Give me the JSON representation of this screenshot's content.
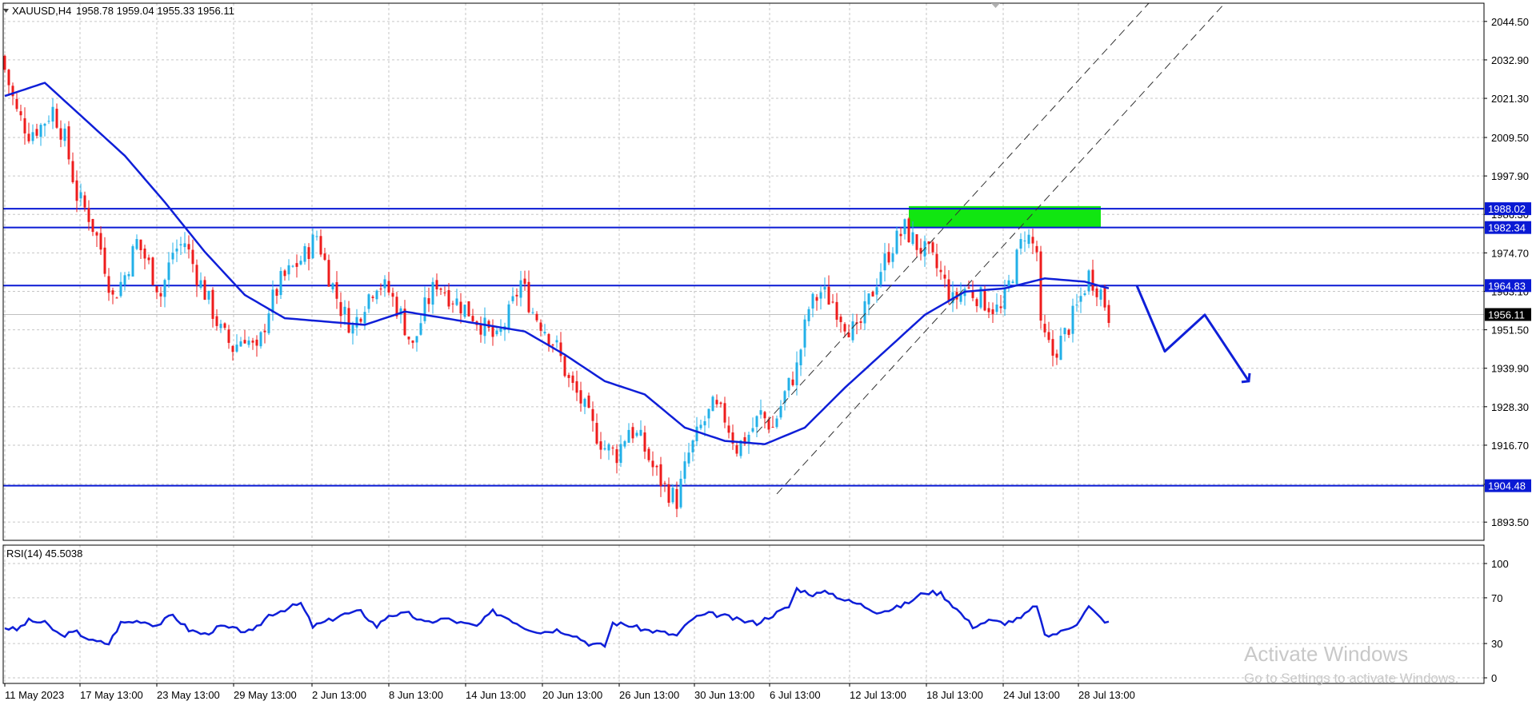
{
  "header": {
    "symbol_label": "XAUUSD,H4",
    "ohlc": "1958.78 1959.04 1955.33 1956.11",
    "menu_icon": "triangle-down-icon"
  },
  "watermark": {
    "line1": "Activate Windows",
    "line2": "Go to Settings to activate Windows."
  },
  "colors": {
    "bull": "#22b0e8",
    "bear": "#ee1c1c",
    "ma": "#0f1fd8",
    "level": "#0a1ad4",
    "zone": "#11e611",
    "grid": "#c6c6c6"
  },
  "chart_data": [
    {
      "type": "candlestick",
      "symbol": "XAUUSD",
      "timeframe": "H4",
      "ylim": [
        1888.0,
        2050.0
      ],
      "y_ticks": [
        "2044.50",
        "2032.90",
        "2021.30",
        "2009.50",
        "1997.90",
        "1986.30",
        "1974.70",
        "1963.10",
        "1951.50",
        "1939.90",
        "1928.30",
        "1916.70",
        "1904.90",
        "1893.50"
      ],
      "x_ticks": [
        "11 May 2023",
        "17 May 13:00",
        "23 May 13:00",
        "29 May 13:00",
        "2 Jun 13:00",
        "8 Jun 13:00",
        "14 Jun 13:00",
        "20 Jun 13:00",
        "26 Jun 13:00",
        "30 Jun 13:00",
        "6 Jul 13:00",
        "12 Jul 13:00",
        "18 Jul 13:00",
        "24 Jul 13:00",
        "28 Jul 13:00"
      ],
      "price_anchors": [
        [
          0,
          2030
        ],
        [
          3,
          2017
        ],
        [
          6,
          2011
        ],
        [
          9,
          2013
        ],
        [
          12,
          2018
        ],
        [
          15,
          2009
        ],
        [
          18,
          1992
        ],
        [
          21,
          1986
        ],
        [
          24,
          1976
        ],
        [
          27,
          1961
        ],
        [
          30,
          1968
        ],
        [
          33,
          1978
        ],
        [
          36,
          1971
        ],
        [
          39,
          1962
        ],
        [
          42,
          1975
        ],
        [
          45,
          1978
        ],
        [
          48,
          1968
        ],
        [
          51,
          1960
        ],
        [
          54,
          1951
        ],
        [
          57,
          1946
        ],
        [
          60,
          1950
        ],
        [
          63,
          1944
        ],
        [
          66,
          1958
        ],
        [
          69,
          1966
        ],
        [
          72,
          1970
        ],
        [
          75,
          1974
        ],
        [
          78,
          1980
        ],
        [
          81,
          1968
        ],
        [
          84,
          1958
        ],
        [
          87,
          1952
        ],
        [
          90,
          1960
        ],
        [
          93,
          1966
        ],
        [
          96,
          1963
        ],
        [
          99,
          1956
        ],
        [
          102,
          1946
        ],
        [
          105,
          1958
        ],
        [
          108,
          1966
        ],
        [
          111,
          1962
        ],
        [
          114,
          1959
        ],
        [
          117,
          1956
        ],
        [
          120,
          1952
        ],
        [
          123,
          1948
        ],
        [
          126,
          1956
        ],
        [
          129,
          1966
        ],
        [
          132,
          1957
        ],
        [
          135,
          1952
        ],
        [
          138,
          1946
        ],
        [
          141,
          1936
        ],
        [
          144,
          1930
        ],
        [
          147,
          1922
        ],
        [
          150,
          1916
        ],
        [
          153,
          1914
        ],
        [
          156,
          1922
        ],
        [
          159,
          1918
        ],
        [
          162,
          1910
        ],
        [
          165,
          1904
        ],
        [
          168,
          1900
        ],
        [
          171,
          1914
        ],
        [
          174,
          1922
        ],
        [
          177,
          1928
        ],
        [
          180,
          1925
        ],
        [
          183,
          1916
        ],
        [
          186,
          1920
        ],
        [
          189,
          1926
        ],
        [
          192,
          1922
        ],
        [
          195,
          1932
        ],
        [
          198,
          1940
        ],
        [
          201,
          1958
        ],
        [
          204,
          1963
        ],
        [
          207,
          1960
        ],
        [
          210,
          1954
        ],
        [
          213,
          1950
        ],
        [
          216,
          1960
        ],
        [
          219,
          1970
        ],
        [
          222,
          1977
        ],
        [
          225,
          1982
        ],
        [
          228,
          1977
        ],
        [
          231,
          1974
        ],
        [
          234,
          1968
        ],
        [
          237,
          1960
        ],
        [
          240,
          1964
        ],
        [
          243,
          1962
        ],
        [
          246,
          1959
        ],
        [
          249,
          1957
        ],
        [
          252,
          1969
        ],
        [
          255,
          1981
        ],
        [
          258,
          1975
        ],
        [
          259,
          1951
        ],
        [
          262,
          1944
        ],
        [
          265,
          1950
        ],
        [
          268,
          1958
        ],
        [
          271,
          1968
        ],
        [
          274,
          1963
        ],
        [
          276,
          1956
        ]
      ],
      "series": [
        {
          "name": "",
          "kind": "moving-average",
          "anchors": [
            [
              0,
              2022
            ],
            [
              10,
              2026
            ],
            [
              20,
              2015
            ],
            [
              30,
              2004
            ],
            [
              40,
              1990
            ],
            [
              50,
              1975
            ],
            [
              60,
              1962
            ],
            [
              70,
              1955
            ],
            [
              80,
              1954
            ],
            [
              90,
              1953
            ],
            [
              100,
              1957
            ],
            [
              110,
              1955
            ],
            [
              120,
              1953
            ],
            [
              130,
              1951
            ],
            [
              140,
              1944
            ],
            [
              150,
              1936
            ],
            [
              160,
              1932
            ],
            [
              170,
              1922
            ],
            [
              180,
              1918
            ],
            [
              190,
              1917
            ],
            [
              200,
              1922
            ],
            [
              210,
              1934
            ],
            [
              220,
              1945
            ],
            [
              230,
              1956
            ],
            [
              240,
              1963
            ],
            [
              250,
              1964
            ],
            [
              260,
              1967
            ],
            [
              270,
              1966
            ],
            [
              276,
              1964
            ]
          ]
        }
      ],
      "levels": [
        {
          "label": "1988.02",
          "value": 1988.02
        },
        {
          "label": "1982.34",
          "value": 1982.34
        },
        {
          "label": "1964.83",
          "value": 1964.83
        },
        {
          "label": "1904.48",
          "value": 1904.48
        }
      ],
      "current_price_label": "1956.11",
      "current_price": 1956.11,
      "zone": {
        "from_bar": 226,
        "to_bar": 274,
        "low": 1982.34,
        "high": 1988.8
      },
      "channel_lines": [
        {
          "from": [
            188,
            1920.5
          ],
          "to": [
            286,
            2050
          ]
        },
        {
          "from": [
            193,
            1902
          ],
          "to": [
            305,
            2050
          ]
        }
      ],
      "projection": [
        [
          283,
          1964.83
        ],
        [
          290,
          1945
        ],
        [
          300,
          1956
        ],
        [
          311,
          1936
        ]
      ]
    },
    {
      "type": "line",
      "label": "RSI(14) 45.5038",
      "ylim": [
        0,
        100
      ],
      "y_ticks": [
        "100",
        "70",
        "30",
        "0"
      ],
      "anchors": [
        [
          0,
          44
        ],
        [
          3,
          42
        ],
        [
          6,
          50
        ],
        [
          10,
          48
        ],
        [
          14,
          37
        ],
        [
          18,
          40
        ],
        [
          22,
          32
        ],
        [
          26,
          30
        ],
        [
          29,
          48
        ],
        [
          34,
          50
        ],
        [
          38,
          46
        ],
        [
          42,
          55
        ],
        [
          46,
          42
        ],
        [
          50,
          38
        ],
        [
          54,
          45
        ],
        [
          58,
          42
        ],
        [
          62,
          40
        ],
        [
          66,
          55
        ],
        [
          70,
          60
        ],
        [
          74,
          65
        ],
        [
          77,
          45
        ],
        [
          81,
          50
        ],
        [
          84,
          55
        ],
        [
          89,
          58
        ],
        [
          93,
          45
        ],
        [
          96,
          55
        ],
        [
          101,
          56
        ],
        [
          105,
          48
        ],
        [
          110,
          52
        ],
        [
          114,
          48
        ],
        [
          118,
          45
        ],
        [
          122,
          58
        ],
        [
          126,
          52
        ],
        [
          130,
          44
        ],
        [
          134,
          40
        ],
        [
          138,
          42
        ],
        [
          142,
          38
        ],
        [
          146,
          30
        ],
        [
          150,
          28
        ],
        [
          152,
          48
        ],
        [
          156,
          46
        ],
        [
          160,
          42
        ],
        [
          164,
          40
        ],
        [
          168,
          37
        ],
        [
          172,
          52
        ],
        [
          176,
          56
        ],
        [
          180,
          54
        ],
        [
          184,
          50
        ],
        [
          188,
          48
        ],
        [
          192,
          55
        ],
        [
          196,
          62
        ],
        [
          198,
          78
        ],
        [
          202,
          73
        ],
        [
          206,
          75
        ],
        [
          210,
          68
        ],
        [
          214,
          64
        ],
        [
          218,
          58
        ],
        [
          222,
          60
        ],
        [
          226,
          66
        ],
        [
          230,
          75
        ],
        [
          234,
          74
        ],
        [
          238,
          60
        ],
        [
          242,
          45
        ],
        [
          246,
          50
        ],
        [
          250,
          48
        ],
        [
          254,
          52
        ],
        [
          258,
          64
        ],
        [
          260,
          36
        ],
        [
          264,
          40
        ],
        [
          268,
          48
        ],
        [
          271,
          62
        ],
        [
          274,
          52
        ],
        [
          276,
          48
        ]
      ]
    }
  ]
}
